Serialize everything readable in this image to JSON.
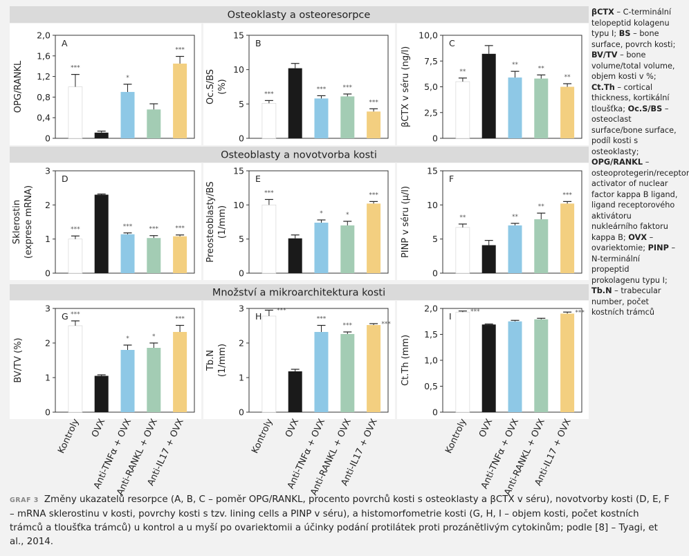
{
  "sections": [
    {
      "title": "Osteoklasty a osteoresorpce"
    },
    {
      "title": "Osteoblasty a novotvorba kosti"
    },
    {
      "title": "Množství a mikroarchitektura kosti"
    }
  ],
  "categories": [
    "Kontroly",
    "OVX",
    "Anti-TNFα + OVX",
    "Anti-RANKL + OVX",
    "Anti-IL17 + OVX"
  ],
  "colors": {
    "bars": [
      "#ffffff",
      "#1a1a1a",
      "#8ec8e6",
      "#a3ccb4",
      "#f3cf80"
    ],
    "panel_bg": "#ffffff",
    "band_bg": "#dadada",
    "page_bg": "#f2f2f2",
    "sig": "#555555"
  },
  "chart_data": [
    {
      "type": "bar",
      "panel": "A",
      "ylabel": "OPG/RANKL",
      "ylim": [
        0,
        2
      ],
      "ticks": [
        "0",
        "0,4",
        "0,8",
        "1,2",
        "1,6",
        "2,0"
      ],
      "categories": [
        "Kontroly",
        "OVX",
        "Anti-TNFα + OVX",
        "Anti-RANKL + OVX",
        "Anti-IL17 + OVX"
      ],
      "values": [
        1.0,
        0.11,
        0.9,
        0.56,
        1.45
      ],
      "errors": [
        0.24,
        0.03,
        0.15,
        0.11,
        0.14
      ],
      "sig": [
        "***",
        "",
        "*",
        "",
        "***"
      ]
    },
    {
      "type": "bar",
      "panel": "B",
      "ylabel": "Oc.S/BS\n(%)",
      "ylim": [
        0,
        15
      ],
      "ticks": [
        "0",
        "5",
        "10",
        "15"
      ],
      "categories": [
        "Kontroly",
        "OVX",
        "Anti-TNFα + OVX",
        "Anti-RANKL + OVX",
        "Anti-IL17 + OVX"
      ],
      "values": [
        5.1,
        10.2,
        5.8,
        6.1,
        3.9
      ],
      "errors": [
        0.4,
        0.7,
        0.4,
        0.35,
        0.4
      ],
      "sig": [
        "***",
        "",
        "***",
        "***",
        "***"
      ]
    },
    {
      "type": "bar",
      "panel": "C",
      "ylabel": "βCTX v séru (ng/l)",
      "ylim": [
        0,
        10
      ],
      "ticks": [
        "0",
        "2,5",
        "5,0",
        "7,5",
        "10,0"
      ],
      "categories": [
        "Kontroly",
        "OVX",
        "Anti-TNFα + OVX",
        "Anti-RANKL + OVX",
        "Anti-IL17 + OVX"
      ],
      "values": [
        5.5,
        8.2,
        5.9,
        5.8,
        5.0
      ],
      "errors": [
        0.35,
        0.8,
        0.6,
        0.35,
        0.3
      ],
      "sig": [
        "**",
        "",
        "**",
        "**",
        "**"
      ]
    },
    {
      "type": "bar",
      "panel": "D",
      "ylabel": "Sklerostin\n(exprese mRNA)",
      "ylim": [
        0,
        3
      ],
      "ticks": [
        "0",
        "1",
        "2",
        "3"
      ],
      "categories": [
        "Kontroly",
        "OVX",
        "Anti-TNFα + OVX",
        "Anti-RANKL + OVX",
        "Anti-IL17 + OVX"
      ],
      "values": [
        1.0,
        2.3,
        1.14,
        1.03,
        1.08
      ],
      "errors": [
        0.09,
        0.02,
        0.04,
        0.07,
        0.04
      ],
      "sig": [
        "***",
        "",
        "***",
        "***",
        "***"
      ]
    },
    {
      "type": "bar",
      "panel": "E",
      "ylabel": "Preosteoblasty/BS\n(1/mm)",
      "ylim": [
        0,
        15
      ],
      "ticks": [
        "0",
        "5",
        "10",
        "15"
      ],
      "categories": [
        "Kontroly",
        "OVX",
        "Anti-TNFα + OVX",
        "Anti-RANKL + OVX",
        "Anti-IL17 + OVX"
      ],
      "values": [
        10.0,
        5.1,
        7.4,
        7.0,
        10.2
      ],
      "errors": [
        0.8,
        0.5,
        0.4,
        0.6,
        0.3
      ],
      "sig": [
        "***",
        "",
        "*",
        "*",
        "***"
      ]
    },
    {
      "type": "bar",
      "panel": "F",
      "ylabel": "PINP v séru (μ/l)",
      "ylim": [
        0,
        15
      ],
      "ticks": [
        "0",
        "5",
        "10",
        "15"
      ],
      "categories": [
        "Kontroly",
        "OVX",
        "Anti-TNFα + OVX",
        "Anti-RANKL + OVX",
        "Anti-IL17 + OVX"
      ],
      "values": [
        6.7,
        4.1,
        7.0,
        7.9,
        10.2
      ],
      "errors": [
        0.5,
        0.7,
        0.3,
        0.9,
        0.3
      ],
      "sig": [
        "**",
        "",
        "**",
        "**",
        "***"
      ]
    },
    {
      "type": "bar",
      "panel": "G",
      "ylabel": "BV/TV (%)",
      "ylim": [
        0,
        3
      ],
      "ticks": [
        "0",
        "1",
        "2",
        "3"
      ],
      "categories": [
        "Kontroly",
        "OVX",
        "Anti-TNFα + OVX",
        "Anti-RANKL + OVX",
        "Anti-IL17 + OVX"
      ],
      "values": [
        2.5,
        1.05,
        1.8,
        1.86,
        2.32
      ],
      "errors": [
        0.14,
        0.03,
        0.14,
        0.14,
        0.19
      ],
      "sig": [
        "***",
        "",
        "*",
        "*",
        "***"
      ]
    },
    {
      "type": "bar",
      "panel": "H",
      "ylabel": "Tb.N\n(1/mm)",
      "ylim": [
        0,
        3
      ],
      "ticks": [
        "0",
        "1",
        "2",
        "3"
      ],
      "categories": [
        "Kontroly",
        "OVX",
        "Anti-TNFα + OVX",
        "Anti-RANKL + OVX",
        "Anti-IL17 + OVX"
      ],
      "values": [
        2.78,
        1.18,
        2.32,
        2.26,
        2.52
      ],
      "errors": [
        0.17,
        0.06,
        0.19,
        0.06,
        0.04
      ],
      "sig": [
        "***",
        "",
        "***",
        "***",
        "***"
      ]
    },
    {
      "type": "bar",
      "panel": "I",
      "ylabel": "Ct.Th (mm)",
      "ylim": [
        0,
        2
      ],
      "ticks": [
        "0",
        "0,5",
        "1,0",
        "1,5",
        "2,0"
      ],
      "categories": [
        "Kontroly",
        "OVX",
        "Anti-TNFα + OVX",
        "Anti-RANKL + OVX",
        "Anti-IL17 + OVX"
      ],
      "values": [
        1.93,
        1.69,
        1.75,
        1.79,
        1.9
      ],
      "errors": [
        0.02,
        0.01,
        0.02,
        0.02,
        0.03
      ],
      "sig": [
        "***",
        "",
        "",
        "",
        "***"
      ]
    }
  ],
  "legend": [
    {
      "abbr": "βCTX",
      "desc": " – C-terminální telopeptid kolagenu typu I;"
    },
    {
      "abbr": "BS",
      "desc": " – bone surface, povrch kosti;"
    },
    {
      "abbr": "BV/TV",
      "desc": " – bone volume/total volume, objem kosti v %;"
    },
    {
      "abbr": "Ct.Th",
      "desc": " – cortical thickness, kortikální tloušťka;"
    },
    {
      "abbr": "Oc.S/BS",
      "desc": " – osteoclast surface/bone surface, podíl kosti s osteoklasty;"
    },
    {
      "abbr": "OPG/RANKL",
      "desc": " – osteoprotegerin/receptor activator of nuclear factor kappa B ligand, ligand receptorového aktivátoru nukleárního faktoru kappa B;"
    },
    {
      "abbr": "OVX",
      "desc": " – ovariektomie;"
    },
    {
      "abbr": "PINP",
      "desc": " – N-terminální propeptid prokolagenu typu I;"
    },
    {
      "abbr": "Tb.N",
      "desc": " – trabecular number, počet kostních trámců"
    }
  ],
  "caption": {
    "label": "GRAF 3",
    "text": "Změny ukazatelů resorpce (A, B, C – poměr OPG/RANKL, procento povrchů kosti s osteoklasty a βCTX v séru), novotvorby kosti (D, E, F – mRNA sklerostinu v kosti, povrchy kosti s tzv. lining cells a PINP v séru), a histomorfometrie kosti (G, H, I – objem kosti, počet kostních trámců a tloušťka trámců) u kontrol a u myší po ovariektomii a účinky podání protilátek proti prozánětlivým cytokinům; podle [8] – Tyagi, et al., 2014."
  }
}
